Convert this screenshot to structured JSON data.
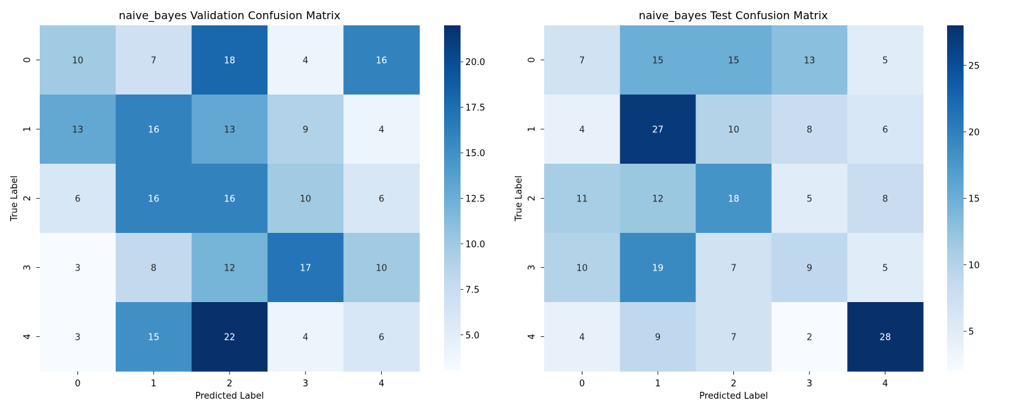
{
  "chart_data": [
    {
      "type": "heatmap",
      "title": "naive_bayes Validation Confusion Matrix",
      "xlabel": "Predicted Label",
      "ylabel": "True Label",
      "x_categories": [
        "0",
        "1",
        "2",
        "3",
        "4"
      ],
      "y_categories": [
        "0",
        "1",
        "2",
        "3",
        "4"
      ],
      "values": [
        [
          10,
          7,
          18,
          4,
          16
        ],
        [
          13,
          16,
          13,
          9,
          4
        ],
        [
          6,
          16,
          16,
          10,
          6
        ],
        [
          3,
          8,
          12,
          17,
          10
        ],
        [
          3,
          15,
          22,
          4,
          6
        ]
      ],
      "colorbar": {
        "min": 3,
        "max": 22,
        "ticks": [
          "5.0",
          "7.5",
          "10.0",
          "12.5",
          "15.0",
          "17.5",
          "20.0"
        ],
        "tick_values": [
          5,
          7.5,
          10,
          12.5,
          15,
          17.5,
          20
        ]
      },
      "colormap": "Blues"
    },
    {
      "type": "heatmap",
      "title": "naive_bayes Test Confusion Matrix",
      "xlabel": "Predicted Label",
      "ylabel": "True Label",
      "x_categories": [
        "0",
        "1",
        "2",
        "3",
        "4"
      ],
      "y_categories": [
        "0",
        "1",
        "2",
        "3",
        "4"
      ],
      "values": [
        [
          7,
          15,
          15,
          13,
          5
        ],
        [
          4,
          27,
          10,
          8,
          6
        ],
        [
          11,
          12,
          18,
          5,
          8
        ],
        [
          10,
          19,
          7,
          9,
          5
        ],
        [
          4,
          9,
          7,
          2,
          28
        ]
      ],
      "colorbar": {
        "min": 2,
        "max": 28,
        "ticks": [
          "5",
          "10",
          "15",
          "20",
          "25"
        ],
        "tick_values": [
          5,
          10,
          15,
          20,
          25
        ]
      },
      "colormap": "Blues"
    }
  ]
}
